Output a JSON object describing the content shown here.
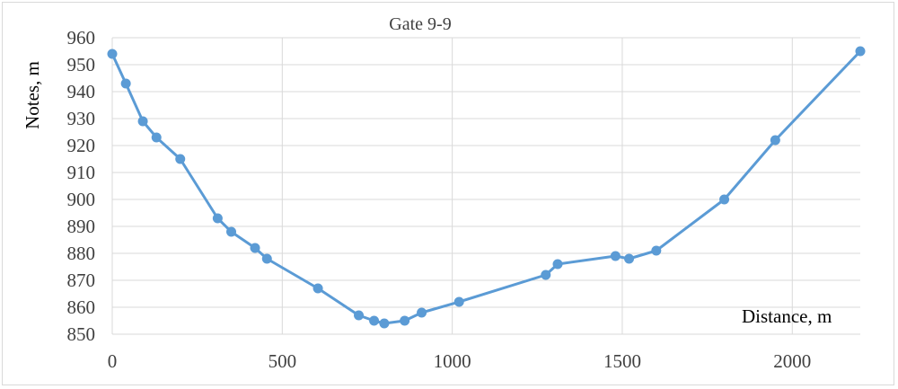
{
  "chart_data": {
    "type": "line",
    "title": "Gate 9-9",
    "xlabel": "Distance, m",
    "ylabel": "Notes, m",
    "xlim": [
      0,
      2200
    ],
    "ylim": [
      850,
      960
    ],
    "x_ticks": [
      0,
      500,
      1000,
      1500,
      2000
    ],
    "y_ticks": [
      850,
      860,
      870,
      880,
      890,
      900,
      910,
      920,
      930,
      940,
      950,
      960
    ],
    "grid": true,
    "legend": "none",
    "series_color": "#5b9bd5",
    "series": [
      {
        "x": [
          0,
          40,
          90,
          130,
          200,
          310,
          350,
          420,
          455,
          605,
          725,
          770,
          800,
          860,
          910,
          1020,
          1275,
          1310,
          1480,
          1520,
          1600,
          1800,
          1950,
          2200
        ],
        "y": [
          954,
          943,
          929,
          923,
          915,
          893,
          888,
          882,
          878,
          867,
          857,
          855,
          854,
          855,
          858,
          862,
          872,
          876,
          879,
          878,
          881,
          900,
          922,
          955
        ]
      }
    ]
  }
}
